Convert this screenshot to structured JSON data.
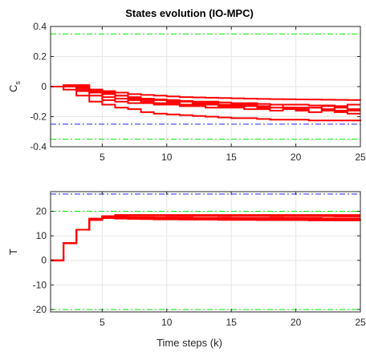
{
  "figure": {
    "title": "States evolution (IO-MPC)",
    "xlabel": "Time steps (k)"
  },
  "colors": {
    "trajectory": "#ff0000",
    "constraint": "#00ee00",
    "reference": "#2222ee",
    "grid": "#e6e6e6",
    "axis": "#262626"
  },
  "chart_data": [
    {
      "type": "line",
      "title": "States evolution (IO-MPC)",
      "xlabel": "",
      "ylabel": "C",
      "ylabel_sub": "s",
      "xlim": [
        1,
        25
      ],
      "ylim": [
        -0.4,
        0.4
      ],
      "xticks": [
        5,
        10,
        15,
        20,
        25
      ],
      "yticks": [
        -0.4,
        -0.2,
        0,
        0.2,
        0.4
      ],
      "grid": true,
      "step": true,
      "hlines": [
        {
          "y": 0.35,
          "style": "dash-dot",
          "color": "constraint"
        },
        {
          "y": -0.35,
          "style": "dash-dot",
          "color": "constraint"
        },
        {
          "y": -0.25,
          "style": "dash-dot",
          "color": "reference"
        }
      ],
      "series": [
        {
          "values": [
            0,
            0,
            -0.01,
            -0.02,
            -0.03,
            -0.04,
            -0.05,
            -0.055,
            -0.06,
            -0.065,
            -0.07,
            -0.072,
            -0.074,
            -0.076,
            -0.078,
            -0.08,
            -0.082,
            -0.083,
            -0.084,
            -0.085,
            -0.086,
            -0.087,
            -0.088,
            -0.089,
            -0.09
          ]
        },
        {
          "values": [
            0,
            0,
            0,
            -0.02,
            -0.05,
            -0.06,
            -0.07,
            -0.08,
            -0.085,
            -0.09,
            -0.095,
            -0.1,
            -0.1,
            -0.105,
            -0.11,
            -0.11,
            -0.115,
            -0.12,
            -0.12,
            -0.12,
            -0.125,
            -0.125,
            -0.13,
            -0.12,
            -0.12
          ]
        },
        {
          "values": [
            0,
            0.01,
            0.01,
            -0.03,
            -0.04,
            -0.06,
            -0.08,
            -0.09,
            -0.09,
            -0.1,
            -0.1,
            -0.11,
            -0.11,
            -0.12,
            -0.12,
            -0.12,
            -0.13,
            -0.12,
            -0.14,
            -0.14,
            -0.14,
            -0.13,
            -0.14,
            -0.15,
            -0.15
          ]
        },
        {
          "values": [
            0,
            0,
            -0.02,
            -0.04,
            -0.07,
            -0.08,
            -0.09,
            -0.1,
            -0.11,
            -0.11,
            -0.12,
            -0.12,
            -0.12,
            -0.13,
            -0.13,
            -0.13,
            -0.14,
            -0.14,
            -0.14,
            -0.15,
            -0.14,
            -0.15,
            -0.16,
            -0.16,
            -0.16
          ]
        },
        {
          "values": [
            0,
            0,
            -0.03,
            -0.06,
            -0.09,
            -0.1,
            -0.11,
            -0.11,
            -0.12,
            -0.12,
            -0.13,
            -0.13,
            -0.14,
            -0.14,
            -0.14,
            -0.15,
            -0.15,
            -0.16,
            -0.15,
            -0.16,
            -0.17,
            -0.16,
            -0.17,
            -0.18,
            -0.18
          ]
        },
        {
          "values": [
            0,
            -0.02,
            -0.06,
            -0.1,
            -0.12,
            -0.14,
            -0.15,
            -0.17,
            -0.18,
            -0.185,
            -0.19,
            -0.195,
            -0.2,
            -0.205,
            -0.21,
            -0.21,
            -0.215,
            -0.22,
            -0.22,
            -0.22,
            -0.225,
            -0.225,
            -0.225,
            -0.225,
            -0.23
          ]
        }
      ]
    },
    {
      "type": "line",
      "title": "",
      "xlabel": "Time steps (k)",
      "ylabel": "T",
      "xlim": [
        1,
        25
      ],
      "ylim": [
        -21,
        28
      ],
      "xticks": [
        5,
        10,
        15,
        20,
        25
      ],
      "yticks": [
        -20,
        -10,
        0,
        10,
        20
      ],
      "grid": true,
      "step": true,
      "hlines": [
        {
          "y": 20,
          "style": "dash-dot",
          "color": "constraint"
        },
        {
          "y": -20,
          "style": "dash-dot",
          "color": "constraint"
        },
        {
          "y": 27,
          "style": "dash-dot",
          "color": "reference"
        }
      ],
      "series": [
        {
          "values": [
            0,
            7,
            12.5,
            16.5,
            18,
            18.5,
            18.5,
            18.5,
            18.5,
            18.5,
            18.5,
            18.5,
            18.5,
            18.5,
            18.5,
            18.5,
            18.5,
            18.5,
            18.5,
            18.5,
            18.5,
            18.5,
            18.5,
            18.5,
            18.5
          ]
        },
        {
          "values": [
            0,
            7,
            12.5,
            16.5,
            18,
            18.2,
            18.3,
            18.3,
            18.3,
            18.2,
            18.2,
            18.2,
            18.2,
            18.1,
            18.1,
            18.1,
            18.1,
            18,
            18,
            18,
            18,
            18,
            17.9,
            17.9,
            17.9
          ]
        },
        {
          "values": [
            0,
            7,
            12.5,
            17,
            17.8,
            17.8,
            17.6,
            17.6,
            17.5,
            17.5,
            17.5,
            17.4,
            17.4,
            17.4,
            17.3,
            17.3,
            17.3,
            17.3,
            17.2,
            17.2,
            17.2,
            17.1,
            17.1,
            17.1,
            17.1
          ]
        },
        {
          "values": [
            0,
            7,
            12.5,
            16.8,
            17.5,
            17.4,
            17.3,
            17.2,
            17.2,
            17.1,
            17.1,
            17,
            17,
            17,
            17,
            16.9,
            16.9,
            16.9,
            16.9,
            16.8,
            16.8,
            16.8,
            16.8,
            16.8,
            16.8
          ]
        },
        {
          "values": [
            0,
            7,
            12.5,
            16.5,
            17.2,
            17,
            16.9,
            16.8,
            16.7,
            16.7,
            16.6,
            16.6,
            16.6,
            16.5,
            16.5,
            16.5,
            16.4,
            16.4,
            16.4,
            16.4,
            16.3,
            16.3,
            16.3,
            16.3,
            16.2
          ]
        }
      ]
    }
  ]
}
